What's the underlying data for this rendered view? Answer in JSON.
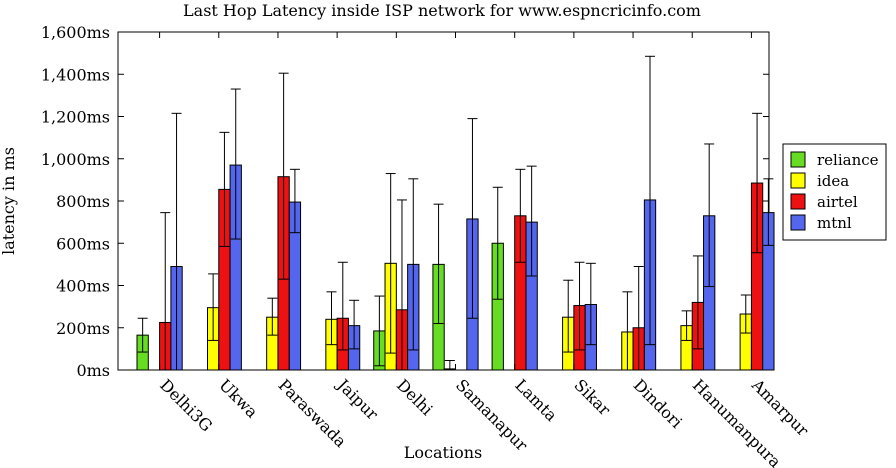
{
  "chart_data": {
    "type": "bar",
    "title": "Last Hop Latency inside ISP network for www.espncricinfo.com",
    "xlabel": "Locations",
    "ylabel": "latency in ms",
    "ylim": [
      0,
      1600
    ],
    "yticks": [
      "0ms",
      "200ms",
      "400ms",
      "600ms",
      "800ms",
      "1,000ms",
      "1,200ms",
      "1,400ms",
      "1,600ms"
    ],
    "ytick_values": [
      0,
      200,
      400,
      600,
      800,
      1000,
      1200,
      1400,
      1600
    ],
    "categories": [
      "Delhi3G",
      "Ukwa",
      "Paraswada",
      "Jaipur",
      "Delhi",
      "Samanapur",
      "Lamta",
      "Sikar",
      "Dindori",
      "Hanumanpura",
      "Amarpur"
    ],
    "legend_position": "right",
    "grid": false,
    "series": [
      {
        "name": "reliance",
        "color": "#66dd22",
        "values": [
          165,
          null,
          null,
          null,
          185,
          500,
          600,
          null,
          null,
          null,
          null
        ],
        "err_low": [
          85,
          null,
          null,
          null,
          20,
          220,
          335,
          null,
          null,
          null,
          null
        ],
        "err_high": [
          245,
          null,
          null,
          null,
          350,
          785,
          865,
          null,
          null,
          null,
          null
        ]
      },
      {
        "name": "idea",
        "color": "#ffff00",
        "values": [
          null,
          295,
          250,
          240,
          505,
          5,
          null,
          250,
          180,
          210,
          265
        ],
        "err_low": [
          null,
          140,
          165,
          120,
          80,
          5,
          null,
          85,
          0,
          140,
          175
        ],
        "err_high": [
          null,
          455,
          340,
          370,
          930,
          45,
          null,
          425,
          370,
          280,
          355
        ]
      },
      {
        "name": "airtel",
        "color": "#ee1111",
        "values": [
          225,
          855,
          915,
          245,
          285,
          null,
          730,
          305,
          200,
          320,
          885
        ],
        "err_low": [
          0,
          585,
          430,
          95,
          0,
          null,
          510,
          95,
          0,
          100,
          555
        ],
        "err_high": [
          745,
          1125,
          1405,
          510,
          805,
          null,
          950,
          510,
          490,
          540,
          1215
        ]
      },
      {
        "name": "mtnl",
        "color": "#5566ee",
        "values": [
          490,
          970,
          795,
          210,
          500,
          715,
          700,
          310,
          805,
          730,
          745
        ],
        "err_low": [
          0,
          620,
          650,
          100,
          95,
          245,
          445,
          120,
          120,
          395,
          590
        ],
        "err_high": [
          1215,
          1330,
          950,
          330,
          905,
          1190,
          965,
          505,
          1485,
          1070,
          905
        ]
      }
    ]
  }
}
